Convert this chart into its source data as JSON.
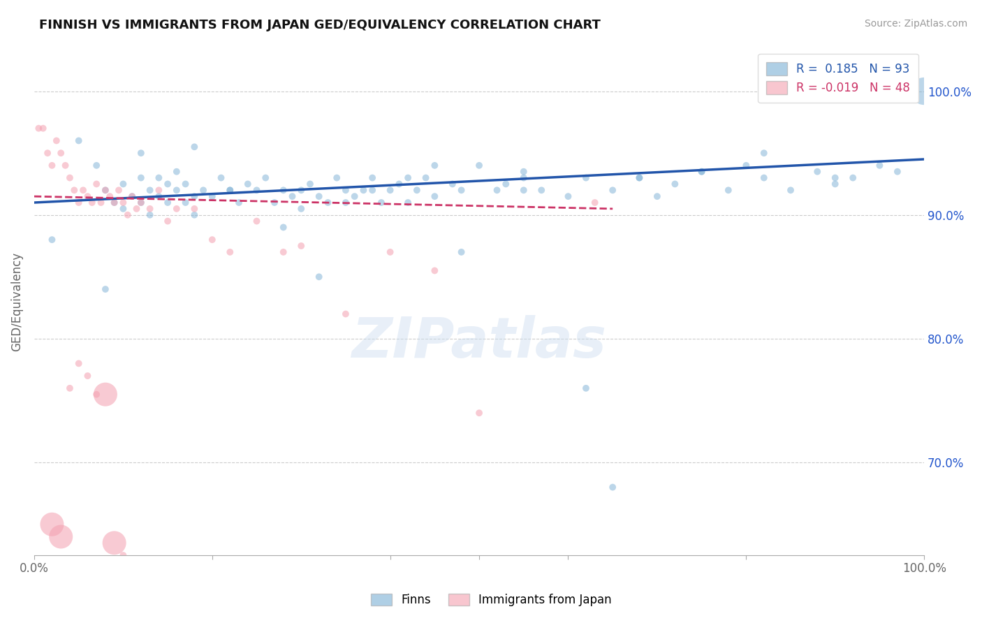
{
  "title": "FINNISH VS IMMIGRANTS FROM JAPAN GED/EQUIVALENCY CORRELATION CHART",
  "source": "Source: ZipAtlas.com",
  "ylabel": "GED/Equivalency",
  "xlim": [
    0.0,
    1.0
  ],
  "ylim": [
    0.625,
    1.035
  ],
  "yticks": [
    0.7,
    0.8,
    0.9,
    1.0
  ],
  "ytick_labels": [
    "70.0%",
    "80.0%",
    "90.0%",
    "100.0%"
  ],
  "blue_R": 0.185,
  "blue_N": 93,
  "pink_R": -0.019,
  "pink_N": 48,
  "legend_label_blue": "Finns",
  "legend_label_pink": "Immigrants from Japan",
  "blue_color": "#7BAFD4",
  "pink_color": "#F4A0B0",
  "trend_blue_color": "#2255AA",
  "trend_pink_color": "#CC3366",
  "watermark": "ZIPatlas",
  "blue_scatter_x": [
    0.02,
    0.05,
    0.07,
    0.08,
    0.09,
    0.1,
    0.1,
    0.11,
    0.12,
    0.12,
    0.13,
    0.13,
    0.14,
    0.14,
    0.15,
    0.15,
    0.16,
    0.16,
    0.17,
    0.17,
    0.18,
    0.18,
    0.19,
    0.2,
    0.21,
    0.22,
    0.23,
    0.24,
    0.25,
    0.26,
    0.27,
    0.28,
    0.29,
    0.3,
    0.3,
    0.31,
    0.32,
    0.33,
    0.34,
    0.35,
    0.35,
    0.36,
    0.37,
    0.38,
    0.39,
    0.4,
    0.41,
    0.42,
    0.43,
    0.44,
    0.45,
    0.47,
    0.48,
    0.5,
    0.52,
    0.53,
    0.55,
    0.57,
    0.6,
    0.62,
    0.65,
    0.68,
    0.7,
    0.72,
    0.75,
    0.78,
    0.8,
    0.82,
    0.85,
    0.88,
    0.9,
    0.92,
    0.95,
    0.97,
    1.0,
    0.08,
    0.12,
    0.18,
    0.22,
    0.28,
    0.32,
    0.38,
    0.42,
    0.48,
    0.55,
    0.62,
    0.68,
    0.75,
    0.82,
    0.9,
    0.45,
    0.55,
    0.65
  ],
  "blue_scatter_y": [
    0.88,
    0.96,
    0.94,
    0.92,
    0.91,
    0.925,
    0.905,
    0.915,
    0.93,
    0.91,
    0.92,
    0.9,
    0.915,
    0.93,
    0.925,
    0.91,
    0.92,
    0.935,
    0.91,
    0.925,
    0.915,
    0.9,
    0.92,
    0.915,
    0.93,
    0.92,
    0.91,
    0.925,
    0.92,
    0.93,
    0.91,
    0.92,
    0.915,
    0.92,
    0.905,
    0.925,
    0.915,
    0.91,
    0.93,
    0.92,
    0.91,
    0.915,
    0.92,
    0.93,
    0.91,
    0.92,
    0.925,
    0.91,
    0.92,
    0.93,
    0.915,
    0.925,
    0.92,
    0.94,
    0.92,
    0.925,
    0.93,
    0.92,
    0.915,
    0.93,
    0.92,
    0.93,
    0.915,
    0.925,
    0.935,
    0.92,
    0.94,
    0.93,
    0.92,
    0.935,
    0.925,
    0.93,
    0.94,
    0.935,
    1.0,
    0.84,
    0.95,
    0.955,
    0.92,
    0.89,
    0.85,
    0.92,
    0.93,
    0.87,
    0.92,
    0.76,
    0.93,
    0.935,
    0.95,
    0.93,
    0.94,
    0.935,
    0.68
  ],
  "blue_scatter_sizes": [
    50,
    50,
    50,
    50,
    50,
    50,
    50,
    50,
    50,
    50,
    50,
    50,
    50,
    50,
    50,
    50,
    50,
    50,
    50,
    50,
    50,
    50,
    50,
    50,
    50,
    50,
    50,
    50,
    50,
    50,
    50,
    50,
    50,
    50,
    50,
    50,
    50,
    50,
    50,
    50,
    50,
    50,
    50,
    50,
    50,
    50,
    50,
    50,
    50,
    50,
    50,
    50,
    50,
    50,
    50,
    50,
    50,
    50,
    50,
    50,
    50,
    50,
    50,
    50,
    50,
    50,
    50,
    50,
    50,
    50,
    50,
    50,
    50,
    50,
    800,
    50,
    50,
    50,
    50,
    50,
    50,
    50,
    50,
    50,
    50,
    50,
    50,
    50,
    50,
    50,
    50,
    50,
    50
  ],
  "pink_scatter_x": [
    0.005,
    0.01,
    0.015,
    0.02,
    0.025,
    0.03,
    0.035,
    0.04,
    0.045,
    0.05,
    0.055,
    0.06,
    0.065,
    0.07,
    0.075,
    0.08,
    0.085,
    0.09,
    0.095,
    0.1,
    0.105,
    0.11,
    0.115,
    0.12,
    0.13,
    0.14,
    0.15,
    0.16,
    0.18,
    0.2,
    0.22,
    0.25,
    0.28,
    0.3,
    0.35,
    0.4,
    0.45,
    0.5,
    0.63,
    0.02,
    0.03,
    0.04,
    0.05,
    0.06,
    0.07,
    0.08,
    0.09,
    0.1
  ],
  "pink_scatter_y": [
    0.97,
    0.97,
    0.95,
    0.94,
    0.96,
    0.95,
    0.94,
    0.93,
    0.92,
    0.91,
    0.92,
    0.915,
    0.91,
    0.925,
    0.91,
    0.92,
    0.915,
    0.91,
    0.92,
    0.91,
    0.9,
    0.915,
    0.905,
    0.91,
    0.905,
    0.92,
    0.895,
    0.905,
    0.905,
    0.88,
    0.87,
    0.895,
    0.87,
    0.875,
    0.82,
    0.87,
    0.855,
    0.74,
    0.91,
    0.65,
    0.64,
    0.76,
    0.78,
    0.77,
    0.755,
    0.755,
    0.635,
    0.625
  ],
  "pink_scatter_sizes": [
    50,
    50,
    50,
    50,
    50,
    50,
    50,
    50,
    50,
    50,
    50,
    50,
    50,
    50,
    50,
    50,
    50,
    50,
    50,
    50,
    50,
    50,
    50,
    50,
    50,
    50,
    50,
    50,
    50,
    50,
    50,
    50,
    50,
    50,
    50,
    50,
    50,
    50,
    50,
    600,
    600,
    50,
    50,
    50,
    50,
    600,
    600,
    50
  ],
  "blue_trend_x": [
    0.0,
    1.0
  ],
  "blue_trend_y": [
    0.91,
    0.945
  ],
  "pink_trend_x": [
    0.0,
    0.65
  ],
  "pink_trend_y": [
    0.915,
    0.905
  ]
}
